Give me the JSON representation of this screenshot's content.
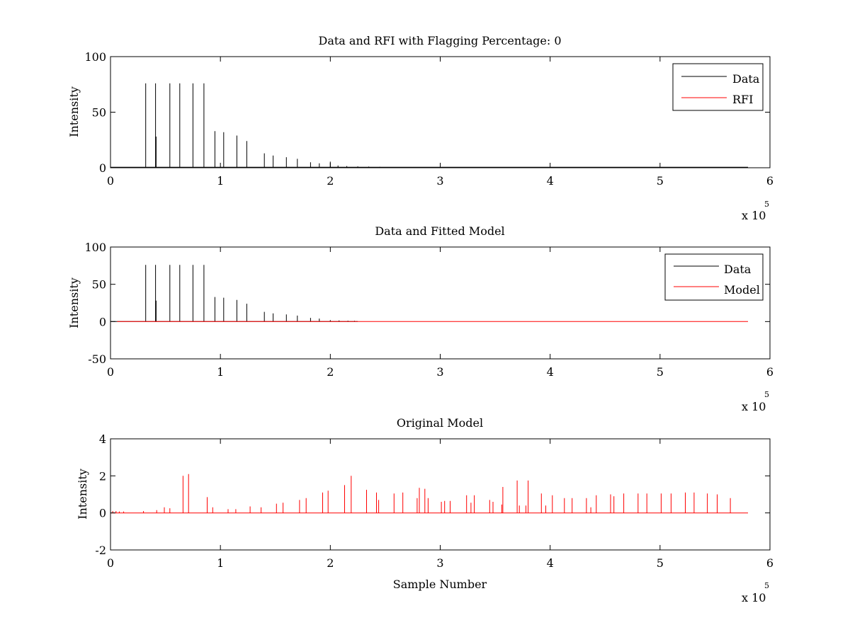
{
  "chart_data": [
    {
      "type": "line",
      "title": "Data and RFI with Flagging Percentage: 0",
      "ylabel": "Intensity",
      "xlabel": "",
      "xlim": [
        0,
        600000
      ],
      "ylim": [
        0,
        100
      ],
      "xticks": [
        0,
        100000,
        200000,
        300000,
        400000,
        500000,
        600000
      ],
      "xtick_labels": [
        "0",
        "1",
        "2",
        "3",
        "4",
        "5",
        "6"
      ],
      "yticks": [
        0,
        50,
        100
      ],
      "ytick_labels": [
        "0",
        "50",
        "100"
      ],
      "x_multiplier": {
        "base": "x 10",
        "exponent": "5"
      },
      "grid": false,
      "legend": {
        "placement": "top-right",
        "entries": [
          {
            "label": "Data",
            "color": "#000000"
          },
          {
            "label": "RFI",
            "color": "#ff0000"
          }
        ]
      },
      "series": [
        {
          "name": "Data",
          "color": "#000000",
          "baseline": 0.5,
          "x_end": 580000,
          "peaks": [
            [
              32000,
              76
            ],
            [
              41000,
              76
            ],
            [
              41500,
              28
            ],
            [
              54000,
              76
            ],
            [
              63000,
              76
            ],
            [
              75000,
              76
            ],
            [
              85000,
              76
            ],
            [
              95000,
              33
            ],
            [
              103000,
              32
            ],
            [
              115000,
              29
            ],
            [
              124000,
              24
            ],
            [
              140000,
              13
            ],
            [
              148000,
              11
            ],
            [
              160000,
              9.5
            ],
            [
              170000,
              8
            ],
            [
              182000,
              5
            ],
            [
              190000,
              4
            ],
            [
              200000,
              5.5
            ],
            [
              207000,
              2
            ],
            [
              215000,
              1.5
            ],
            [
              225000,
              1.2
            ],
            [
              235000,
              1
            ],
            [
              245000,
              0.9
            ],
            [
              255000,
              0.8
            ],
            [
              265000,
              0.7
            ],
            [
              275000,
              0.6
            ],
            [
              285000,
              0.6
            ],
            [
              300000,
              0.6
            ],
            [
              320000,
              0.8
            ],
            [
              340000,
              0.6
            ],
            [
              360000,
              0.5
            ],
            [
              380000,
              0.6
            ],
            [
              400000,
              0.5
            ],
            [
              420000,
              0.5
            ],
            [
              440000,
              0.6
            ],
            [
              460000,
              0.5
            ],
            [
              480000,
              0.5
            ],
            [
              500000,
              0.5
            ],
            [
              520000,
              0.6
            ],
            [
              540000,
              0.5
            ],
            [
              560000,
              0.5
            ],
            [
              575000,
              0.5
            ]
          ]
        },
        {
          "name": "RFI",
          "color": "#ff0000",
          "baseline": 0,
          "x_end": 580000,
          "peaks": []
        }
      ]
    },
    {
      "type": "line",
      "title": "Data and Fitted Model",
      "ylabel": "Intensity",
      "xlabel": "",
      "xlim": [
        0,
        600000
      ],
      "ylim": [
        -50,
        100
      ],
      "xticks": [
        0,
        100000,
        200000,
        300000,
        400000,
        500000,
        600000
      ],
      "xtick_labels": [
        "0",
        "1",
        "2",
        "3",
        "4",
        "5",
        "6"
      ],
      "yticks": [
        -50,
        0,
        50,
        100
      ],
      "ytick_labels": [
        "-50",
        "0",
        "50",
        "100"
      ],
      "x_multiplier": {
        "base": "x 10",
        "exponent": "5"
      },
      "grid": false,
      "legend": {
        "placement": "top-right",
        "entries": [
          {
            "label": "Data",
            "color": "#000000"
          },
          {
            "label": "Model",
            "color": "#ff0000"
          }
        ]
      },
      "series": [
        {
          "name": "Data",
          "color": "#000000",
          "baseline": 0,
          "x_end": 225000,
          "peaks": [
            [
              32000,
              76
            ],
            [
              41000,
              76
            ],
            [
              41500,
              28
            ],
            [
              54000,
              76
            ],
            [
              63000,
              76
            ],
            [
              75000,
              76
            ],
            [
              85000,
              76
            ],
            [
              95000,
              33
            ],
            [
              103000,
              32
            ],
            [
              115000,
              29
            ],
            [
              124000,
              24
            ],
            [
              140000,
              13
            ],
            [
              148000,
              11
            ],
            [
              160000,
              9.5
            ],
            [
              170000,
              8
            ],
            [
              182000,
              5
            ],
            [
              190000,
              4
            ],
            [
              200000,
              2
            ],
            [
              208000,
              1.5
            ],
            [
              216000,
              1.2
            ],
            [
              222000,
              1
            ]
          ]
        },
        {
          "name": "Model",
          "color": "#ff0000",
          "baseline": 0,
          "x_start": 6000,
          "x_end": 580000,
          "peaks": []
        }
      ]
    },
    {
      "type": "line",
      "title": "Original Model",
      "ylabel": "Intensity",
      "xlabel": "Sample Number",
      "xlim": [
        0,
        600000
      ],
      "ylim": [
        -2,
        4
      ],
      "xticks": [
        0,
        100000,
        200000,
        300000,
        400000,
        500000,
        600000
      ],
      "xtick_labels": [
        "0",
        "1",
        "2",
        "3",
        "4",
        "5",
        "6"
      ],
      "yticks": [
        -2,
        0,
        2,
        4
      ],
      "ytick_labels": [
        "-2",
        "0",
        "2",
        "4"
      ],
      "x_multiplier": {
        "base": "x 10",
        "exponent": "5"
      },
      "grid": false,
      "legend": null,
      "series": [
        {
          "color": "#ff0000",
          "baseline": 0,
          "x_end": 580000,
          "peaks": [
            [
              2000,
              0.1
            ],
            [
              5000,
              0.1
            ],
            [
              8000,
              0.08
            ],
            [
              12000,
              0.08
            ],
            [
              30000,
              0.1
            ],
            [
              42000,
              0.15
            ],
            [
              49000,
              0.3
            ],
            [
              54000,
              0.25
            ],
            [
              66000,
              2
            ],
            [
              71000,
              2.1
            ],
            [
              88000,
              0.85
            ],
            [
              93000,
              0.3
            ],
            [
              107000,
              0.2
            ],
            [
              114000,
              0.2
            ],
            [
              127000,
              0.35
            ],
            [
              137000,
              0.3
            ],
            [
              151000,
              0.5
            ],
            [
              157000,
              0.55
            ],
            [
              172000,
              0.7
            ],
            [
              178000,
              0.8
            ],
            [
              193000,
              1.1
            ],
            [
              198000,
              1.2
            ],
            [
              213000,
              1.5
            ],
            [
              219000,
              2
            ],
            [
              233000,
              1.25
            ],
            [
              242000,
              1.1
            ],
            [
              244000,
              0.7
            ],
            [
              258000,
              1.05
            ],
            [
              266000,
              1.1
            ],
            [
              279000,
              0.8
            ],
            [
              281000,
              1.35
            ],
            [
              286000,
              1.3
            ],
            [
              289000,
              0.8
            ],
            [
              301000,
              0.6
            ],
            [
              304000,
              0.65
            ],
            [
              309000,
              0.65
            ],
            [
              324000,
              0.95
            ],
            [
              328000,
              0.55
            ],
            [
              331000,
              0.95
            ],
            [
              345000,
              0.7
            ],
            [
              348000,
              0.6
            ],
            [
              356000,
              0.45
            ],
            [
              357000,
              1.4
            ],
            [
              370000,
              1.75
            ],
            [
              372000,
              0.4
            ],
            [
              378000,
              0.4
            ],
            [
              380000,
              1.75
            ],
            [
              392000,
              1.05
            ],
            [
              396000,
              0.4
            ],
            [
              402000,
              0.95
            ],
            [
              413000,
              0.8
            ],
            [
              420000,
              0.8
            ],
            [
              433000,
              0.8
            ],
            [
              437000,
              0.3
            ],
            [
              442000,
              0.95
            ],
            [
              455000,
              1
            ],
            [
              458000,
              0.9
            ],
            [
              467000,
              1.05
            ],
            [
              480000,
              1.05
            ],
            [
              488000,
              1.05
            ],
            [
              501000,
              1.05
            ],
            [
              510000,
              1.05
            ],
            [
              523000,
              1.1
            ],
            [
              531000,
              1.1
            ],
            [
              543000,
              1.05
            ],
            [
              552000,
              1
            ],
            [
              564000,
              0.8
            ]
          ]
        }
      ]
    }
  ]
}
